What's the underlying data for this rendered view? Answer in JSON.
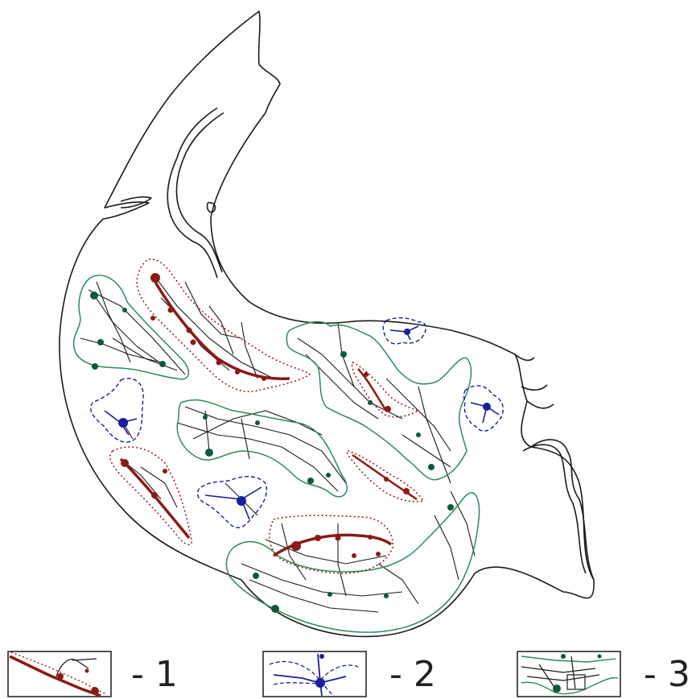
{
  "colors": {
    "outline": "#1a1a1a",
    "type_1": "#8b1a14",
    "type_2": "#1a1f9a",
    "type_3": "#2d8a5a",
    "dot_green": "#0d5a3a"
  },
  "legend": [
    {
      "key": "type_1",
      "label": "- 1"
    },
    {
      "key": "type_2",
      "label": "- 2"
    },
    {
      "key": "type_3",
      "label": "- 3"
    }
  ]
}
